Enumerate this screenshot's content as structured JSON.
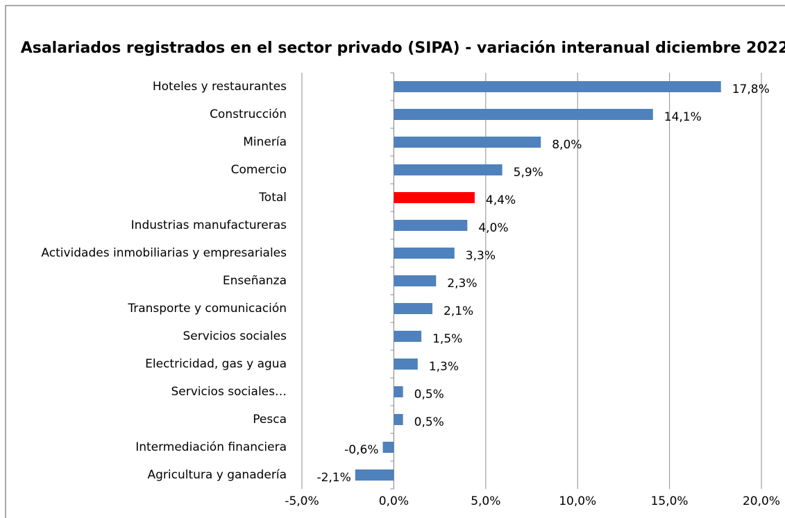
{
  "chart_data": {
    "type": "barh",
    "title": "Asalariados registrados en el sector privado (SIPA) - variación interanual diciembre 2022",
    "categories": [
      "Hoteles y restaurantes",
      "Construcción",
      "Minería",
      "Comercio",
      "Total",
      "Industrias manufactureras",
      "Actividades inmobiliarias y empresariales",
      "Enseñanza",
      "Transporte y comunicación",
      "Servicios sociales",
      "Electricidad, gas y agua",
      "Servicios sociales…",
      "Pesca",
      "Intermediación financiera",
      "Agricultura y ganadería"
    ],
    "values": [
      17.8,
      14.1,
      8.0,
      5.9,
      4.4,
      4.0,
      3.3,
      2.3,
      2.1,
      1.5,
      1.3,
      0.5,
      0.5,
      -0.6,
      -2.1
    ],
    "value_labels": [
      "17,8%",
      "14,1%",
      "8,0%",
      "5,9%",
      "4,4%",
      "4,0%",
      "3,3%",
      "2,3%",
      "2,1%",
      "1,5%",
      "1,3%",
      "0,5%",
      "0,5%",
      "-0,6%",
      "-2,1%"
    ],
    "colors": [
      "#4f81bd",
      "#4f81bd",
      "#4f81bd",
      "#4f81bd",
      "#ff0000",
      "#4f81bd",
      "#4f81bd",
      "#4f81bd",
      "#4f81bd",
      "#4f81bd",
      "#4f81bd",
      "#4f81bd",
      "#4f81bd",
      "#4f81bd",
      "#4f81bd"
    ],
    "xlim": [
      -5,
      20
    ],
    "xticks": [
      {
        "value": -5,
        "label": "-5,0%"
      },
      {
        "value": 0,
        "label": "0,0%"
      },
      {
        "value": 5,
        "label": "5,0%"
      },
      {
        "value": 10,
        "label": "10,0%"
      },
      {
        "value": 15,
        "label": "15,0%"
      },
      {
        "value": 20,
        "label": "20,0%"
      }
    ],
    "grid": true
  }
}
